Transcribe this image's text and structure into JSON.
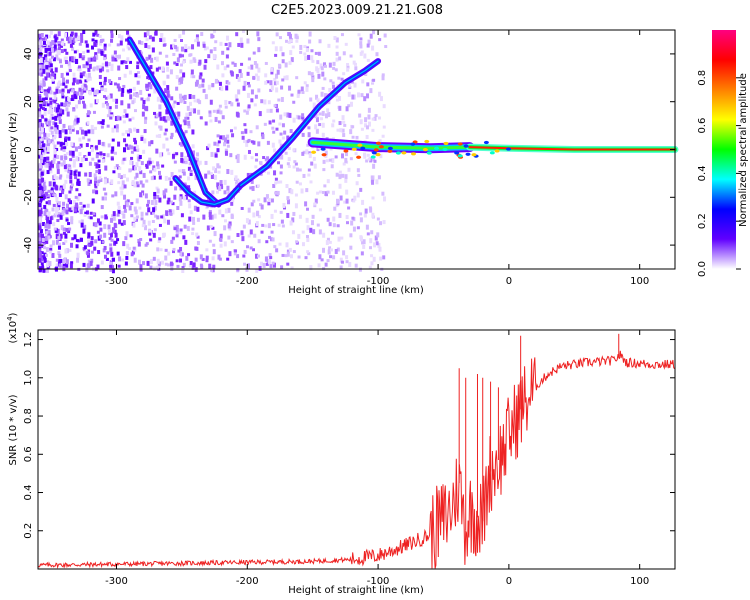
{
  "title": "C2E5.2023.009.21.21.G08",
  "chart_data": [
    {
      "type": "heatmap",
      "title": "C2E5.2023.009.21.21.G08",
      "xlabel": "Height of straight line (km)",
      "ylabel": "Frequency (Hz)",
      "xlim": [
        -360,
        127
      ],
      "ylim": [
        -50,
        50
      ],
      "x_ticks": [
        -300,
        -200,
        -100,
        0,
        100
      ],
      "x_tick_labels": [
        "-300",
        "-200",
        "-100",
        "0",
        "100"
      ],
      "y_ticks": [
        -40,
        -20,
        0,
        20,
        40
      ],
      "y_tick_labels": [
        "-40",
        "-20",
        "0",
        "20",
        "40"
      ],
      "colorbar": {
        "label": "Normalized spectral amplitude",
        "range": [
          0,
          1
        ],
        "ticks": [
          0.0,
          0.2,
          0.4,
          0.6,
          0.8
        ],
        "tick_labels": [
          "0.0",
          "0.2",
          "0.4",
          "0.6",
          "0.8"
        ],
        "colormap": [
          "#ffffff",
          "#6000ff",
          "#0000ff",
          "#00ffff",
          "#00ff00",
          "#ffff00",
          "#ff8000",
          "#ff0000",
          "#ff0080"
        ]
      },
      "features": [
        {
          "name": "upper-branch",
          "points": [
            [
              -290,
              46
            ],
            [
              -262,
              20
            ],
            [
              -245,
              0
            ],
            [
              -232,
              -18
            ],
            [
              -222,
              -23
            ]
          ]
        },
        {
          "name": "v-trough",
          "points": [
            [
              -255,
              -12
            ],
            [
              -245,
              -18
            ],
            [
              -235,
              -22
            ],
            [
              -225,
              -23
            ],
            [
              -215,
              -21
            ],
            [
              -205,
              -15
            ]
          ]
        },
        {
          "name": "rising-branch",
          "points": [
            [
              -205,
              -15
            ],
            [
              -185,
              -7
            ],
            [
              -165,
              5
            ],
            [
              -145,
              18
            ],
            [
              -125,
              28
            ],
            [
              -110,
              33
            ],
            [
              -100,
              37
            ]
          ]
        },
        {
          "name": "carrier-line",
          "points": [
            [
              -150,
              3
            ],
            [
              -100,
              1
            ],
            [
              -60,
              0.5
            ],
            [
              -30,
              1
            ],
            [
              0,
              0.5
            ],
            [
              50,
              0
            ],
            [
              127,
              0
            ]
          ]
        }
      ]
    },
    {
      "type": "line",
      "xlabel": "Height of straight line (km)",
      "ylabel": "SNR (10 * v/v)",
      "y_multiplier_label": "(x10",
      "y_multiplier_exp": "4",
      "xlim": [
        -360,
        127
      ],
      "ylim": [
        0,
        1.25
      ],
      "x_ticks": [
        -300,
        -200,
        -100,
        0,
        100
      ],
      "x_tick_labels": [
        "-300",
        "-200",
        "-100",
        "0",
        "100"
      ],
      "y_ticks": [
        0.2,
        0.4,
        0.6,
        0.8,
        1.0,
        1.2
      ],
      "y_tick_labels": [
        "0.2",
        "0.4",
        "0.6",
        "0.8",
        "1.0",
        "1.2"
      ],
      "line_color": "#ee2222",
      "series": [
        {
          "name": "SNR",
          "x": [
            -360,
            -300,
            -250,
            -200,
            -150,
            -120,
            -100,
            -80,
            -60,
            -45,
            -38,
            -33,
            -30,
            -20,
            -15,
            -10,
            -5,
            0,
            10,
            20,
            30,
            40,
            60,
            80,
            85,
            90,
            110,
            127
          ],
          "y": [
            0.02,
            0.025,
            0.03,
            0.035,
            0.04,
            0.05,
            0.07,
            0.12,
            0.18,
            0.3,
            0.45,
            0.2,
            0.3,
            0.25,
            0.5,
            0.55,
            0.6,
            0.7,
            0.85,
            0.95,
            1.02,
            1.06,
            1.08,
            1.09,
            1.12,
            1.08,
            1.07,
            1.07
          ]
        }
      ],
      "spikes": [
        {
          "x": -38,
          "y": 1.05
        },
        {
          "x": -33,
          "y": 1.0
        },
        {
          "x": -24,
          "y": 1.02
        },
        {
          "x": -20,
          "y": 1.0
        },
        {
          "x": -14,
          "y": 0.98
        },
        {
          "x": -8,
          "y": 0.95
        },
        {
          "x": 9,
          "y": 1.22
        },
        {
          "x": 84,
          "y": 1.23
        }
      ]
    }
  ]
}
